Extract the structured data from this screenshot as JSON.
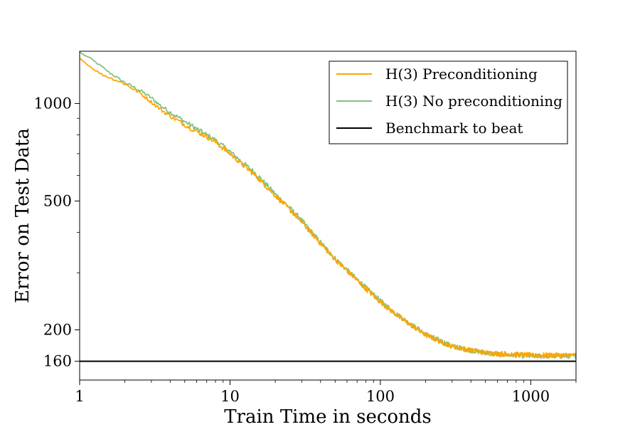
{
  "chart_data": {
    "type": "line",
    "title": "",
    "xlabel": "Train Time in seconds",
    "ylabel": "Error on Test Data",
    "xscale": "log",
    "yscale": "log",
    "xlim": [
      1,
      2000
    ],
    "ylim": [
      140,
      1450
    ],
    "xticks": [
      {
        "value": 1,
        "label": "1"
      },
      {
        "value": 10,
        "label": "10"
      },
      {
        "value": 100,
        "label": "100"
      },
      {
        "value": 1000,
        "label": "1000"
      }
    ],
    "yticks": [
      {
        "value": 160,
        "label": "160"
      },
      {
        "value": 200,
        "label": "200"
      },
      {
        "value": 500,
        "label": "500"
      },
      {
        "value": 1000,
        "label": "1000"
      }
    ],
    "grid": false,
    "legend_position": "top-right",
    "series": [
      {
        "name": "H(3) Preconditioning",
        "color": "#ffa500",
        "x": [
          1,
          1.2,
          1.4,
          1.6,
          2,
          2.5,
          3,
          3.5,
          4,
          5,
          6,
          7,
          8,
          10,
          12,
          15,
          20,
          25,
          30,
          40,
          50,
          60,
          80,
          100,
          120,
          150,
          200,
          250,
          300,
          400,
          500,
          600,
          800,
          1000,
          1200,
          1500,
          2000
        ],
        "y": [
          1380,
          1290,
          1230,
          1200,
          1150,
          1080,
          1010,
          955,
          915,
          860,
          820,
          790,
          760,
          700,
          650,
          595,
          520,
          470,
          430,
          370,
          330,
          305,
          268,
          244,
          228,
          211,
          193,
          184,
          178,
          173,
          170,
          169,
          168,
          167,
          167,
          167,
          167
        ]
      },
      {
        "name": "H(3) No preconditioning",
        "color": "#6ab86a",
        "x": [
          1,
          1.2,
          1.4,
          1.6,
          2,
          2.5,
          3,
          3.5,
          4,
          5,
          6,
          7,
          8,
          10,
          12,
          15,
          20,
          25,
          30,
          40,
          50,
          60,
          80,
          100,
          120,
          150,
          200,
          250,
          300,
          400,
          500,
          600,
          800,
          1000,
          1200,
          1500,
          2000
        ],
        "y": [
          1440,
          1370,
          1300,
          1240,
          1160,
          1100,
          1040,
          980,
          940,
          880,
          835,
          800,
          770,
          710,
          660,
          605,
          525,
          475,
          435,
          372,
          332,
          306,
          270,
          246,
          229,
          212,
          194,
          185,
          178,
          173,
          170,
          168,
          167,
          166,
          166,
          166,
          166
        ]
      },
      {
        "name": "Benchmark to beat",
        "color": "#000000",
        "x": [
          1,
          2000
        ],
        "y": [
          160,
          160
        ]
      }
    ]
  }
}
